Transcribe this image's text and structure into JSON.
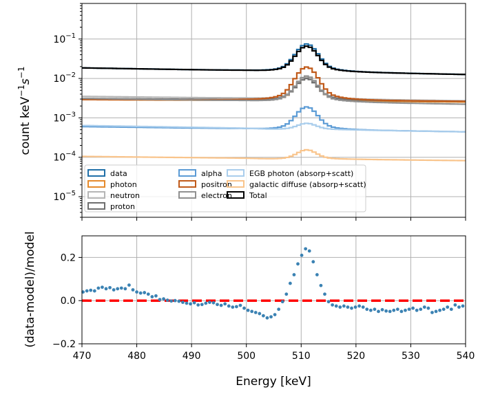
{
  "chart_data": [
    {
      "type": "line",
      "drawstyle": "steps",
      "ylabel": "count keV",
      "ylabel_sup1": "−1",
      "ylabel_mid": "s",
      "ylabel_sup2": "−1",
      "yscale": "log",
      "ylim": [
        3e-06,
        0.8
      ],
      "xlim": [
        470,
        540
      ],
      "grid": true,
      "legend_placement": "lower-center",
      "y_ticks": [
        {
          "value": 1e-05,
          "base": "10",
          "exp": "−5"
        },
        {
          "value": 0.0001,
          "base": "10",
          "exp": "−4"
        },
        {
          "value": 0.001,
          "base": "10",
          "exp": "−3"
        },
        {
          "value": 0.01,
          "base": "10",
          "exp": "−2"
        },
        {
          "value": 0.1,
          "base": "10",
          "exp": "−1"
        }
      ],
      "series": [
        {
          "name": "data",
          "color": "#1f6fa8",
          "width": 2.2,
          "base": 0.0185,
          "end": 0.0125,
          "peak": 0.075
        },
        {
          "name": "photon",
          "color": "#e58a2b",
          "width": 2.2,
          "base": 0.0029,
          "end": 0.0025,
          "peak": 0.0105
        },
        {
          "name": "neutron",
          "color": "#b5b5b5",
          "width": 2.2,
          "base": 0.0035,
          "end": 0.0027,
          "peak": 0.0105
        },
        {
          "name": "proton",
          "color": "#6e6e6e",
          "width": 2.2,
          "base": 0.0031,
          "end": 0.0026,
          "peak": 0.01
        },
        {
          "name": "alpha",
          "color": "#5b9bd5",
          "width": 2.2,
          "base": 0.0006,
          "end": 0.00044,
          "peak": 0.0019
        },
        {
          "name": "positron",
          "color": "#c05a1a",
          "width": 2.2,
          "base": 0.0029,
          "end": 0.0026,
          "peak": 0.0195
        },
        {
          "name": "electron",
          "color": "#909090",
          "width": 2.2,
          "base": 0.0031,
          "end": 0.0022,
          "peak": 0.0115
        },
        {
          "name": "EGB photon (absorp+scatt)",
          "color": "#a9cdec",
          "width": 2.2,
          "base": 0.00064,
          "end": 0.00044,
          "peak": 0.00073
        },
        {
          "name": "galactic diffuse (absorp+scatt)",
          "color": "#f9c48b",
          "width": 2.2,
          "base": 0.000105,
          "end": 8.2e-05,
          "peak": 0.000155
        },
        {
          "name": "Total",
          "color": "#000000",
          "width": 2.2,
          "base": 0.0185,
          "end": 0.0125,
          "peak": 0.066
        }
      ]
    },
    {
      "type": "scatter",
      "xlabel": "Energy [keV]",
      "ylabel": "(data-model)/model",
      "xlim": [
        470,
        540
      ],
      "ylim": [
        -0.2,
        0.3
      ],
      "grid": true,
      "x_ticks": [
        "470",
        "480",
        "490",
        "500",
        "510",
        "520",
        "530",
        "540"
      ],
      "y_ticks": [
        "−0.2",
        "0.0",
        "0.2"
      ],
      "reference_line": {
        "y": 0.0,
        "color": "#ff0000",
        "style": "dashed"
      },
      "points_color": "#3b82b3",
      "x": [
        470.2,
        470.9,
        471.6,
        472.3,
        473.0,
        473.7,
        474.4,
        475.1,
        475.8,
        476.5,
        477.2,
        477.9,
        478.6,
        479.3,
        480.0,
        480.7,
        481.4,
        482.1,
        482.8,
        483.5,
        484.2,
        484.9,
        485.6,
        486.3,
        487.0,
        487.7,
        488.4,
        489.1,
        489.8,
        490.5,
        491.2,
        491.9,
        492.6,
        493.3,
        494.0,
        494.7,
        495.4,
        496.1,
        496.8,
        497.5,
        498.2,
        498.9,
        499.6,
        500.3,
        501.0,
        501.7,
        502.4,
        503.1,
        503.8,
        504.5,
        505.2,
        505.9,
        506.6,
        507.3,
        508.0,
        508.7,
        509.4,
        510.1,
        510.8,
        511.5,
        512.2,
        512.9,
        513.6,
        514.3,
        515.0,
        515.7,
        516.4,
        517.1,
        517.8,
        518.5,
        519.2,
        519.9,
        520.6,
        521.3,
        522.0,
        522.7,
        523.4,
        524.1,
        524.8,
        525.5,
        526.2,
        526.9,
        527.6,
        528.3,
        529.0,
        529.7,
        530.4,
        531.1,
        531.8,
        532.5,
        533.2,
        533.9,
        534.6,
        535.3,
        536.0,
        536.7,
        537.4,
        538.1,
        538.8,
        539.5
      ],
      "y": [
        0.04,
        0.045,
        0.048,
        0.045,
        0.058,
        0.062,
        0.055,
        0.06,
        0.05,
        0.055,
        0.058,
        0.055,
        0.072,
        0.05,
        0.04,
        0.035,
        0.037,
        0.03,
        0.018,
        0.022,
        0.005,
        0.008,
        0.002,
        -0.002,
        0.0,
        -0.003,
        -0.008,
        -0.012,
        -0.015,
        -0.01,
        -0.02,
        -0.018,
        -0.012,
        -0.008,
        -0.01,
        -0.018,
        -0.022,
        -0.015,
        -0.025,
        -0.03,
        -0.028,
        -0.022,
        -0.035,
        -0.045,
        -0.05,
        -0.055,
        -0.06,
        -0.07,
        -0.08,
        -0.075,
        -0.065,
        -0.04,
        -0.005,
        0.03,
        0.08,
        0.12,
        0.17,
        0.21,
        0.24,
        0.23,
        0.18,
        0.12,
        0.07,
        0.03,
        -0.005,
        -0.02,
        -0.025,
        -0.03,
        -0.025,
        -0.03,
        -0.035,
        -0.03,
        -0.025,
        -0.03,
        -0.04,
        -0.045,
        -0.04,
        -0.05,
        -0.042,
        -0.048,
        -0.05,
        -0.045,
        -0.04,
        -0.05,
        -0.045,
        -0.04,
        -0.035,
        -0.045,
        -0.04,
        -0.03,
        -0.035,
        -0.055,
        -0.05,
        -0.045,
        -0.04,
        -0.03,
        -0.04,
        -0.02,
        -0.03,
        -0.025
      ]
    }
  ]
}
